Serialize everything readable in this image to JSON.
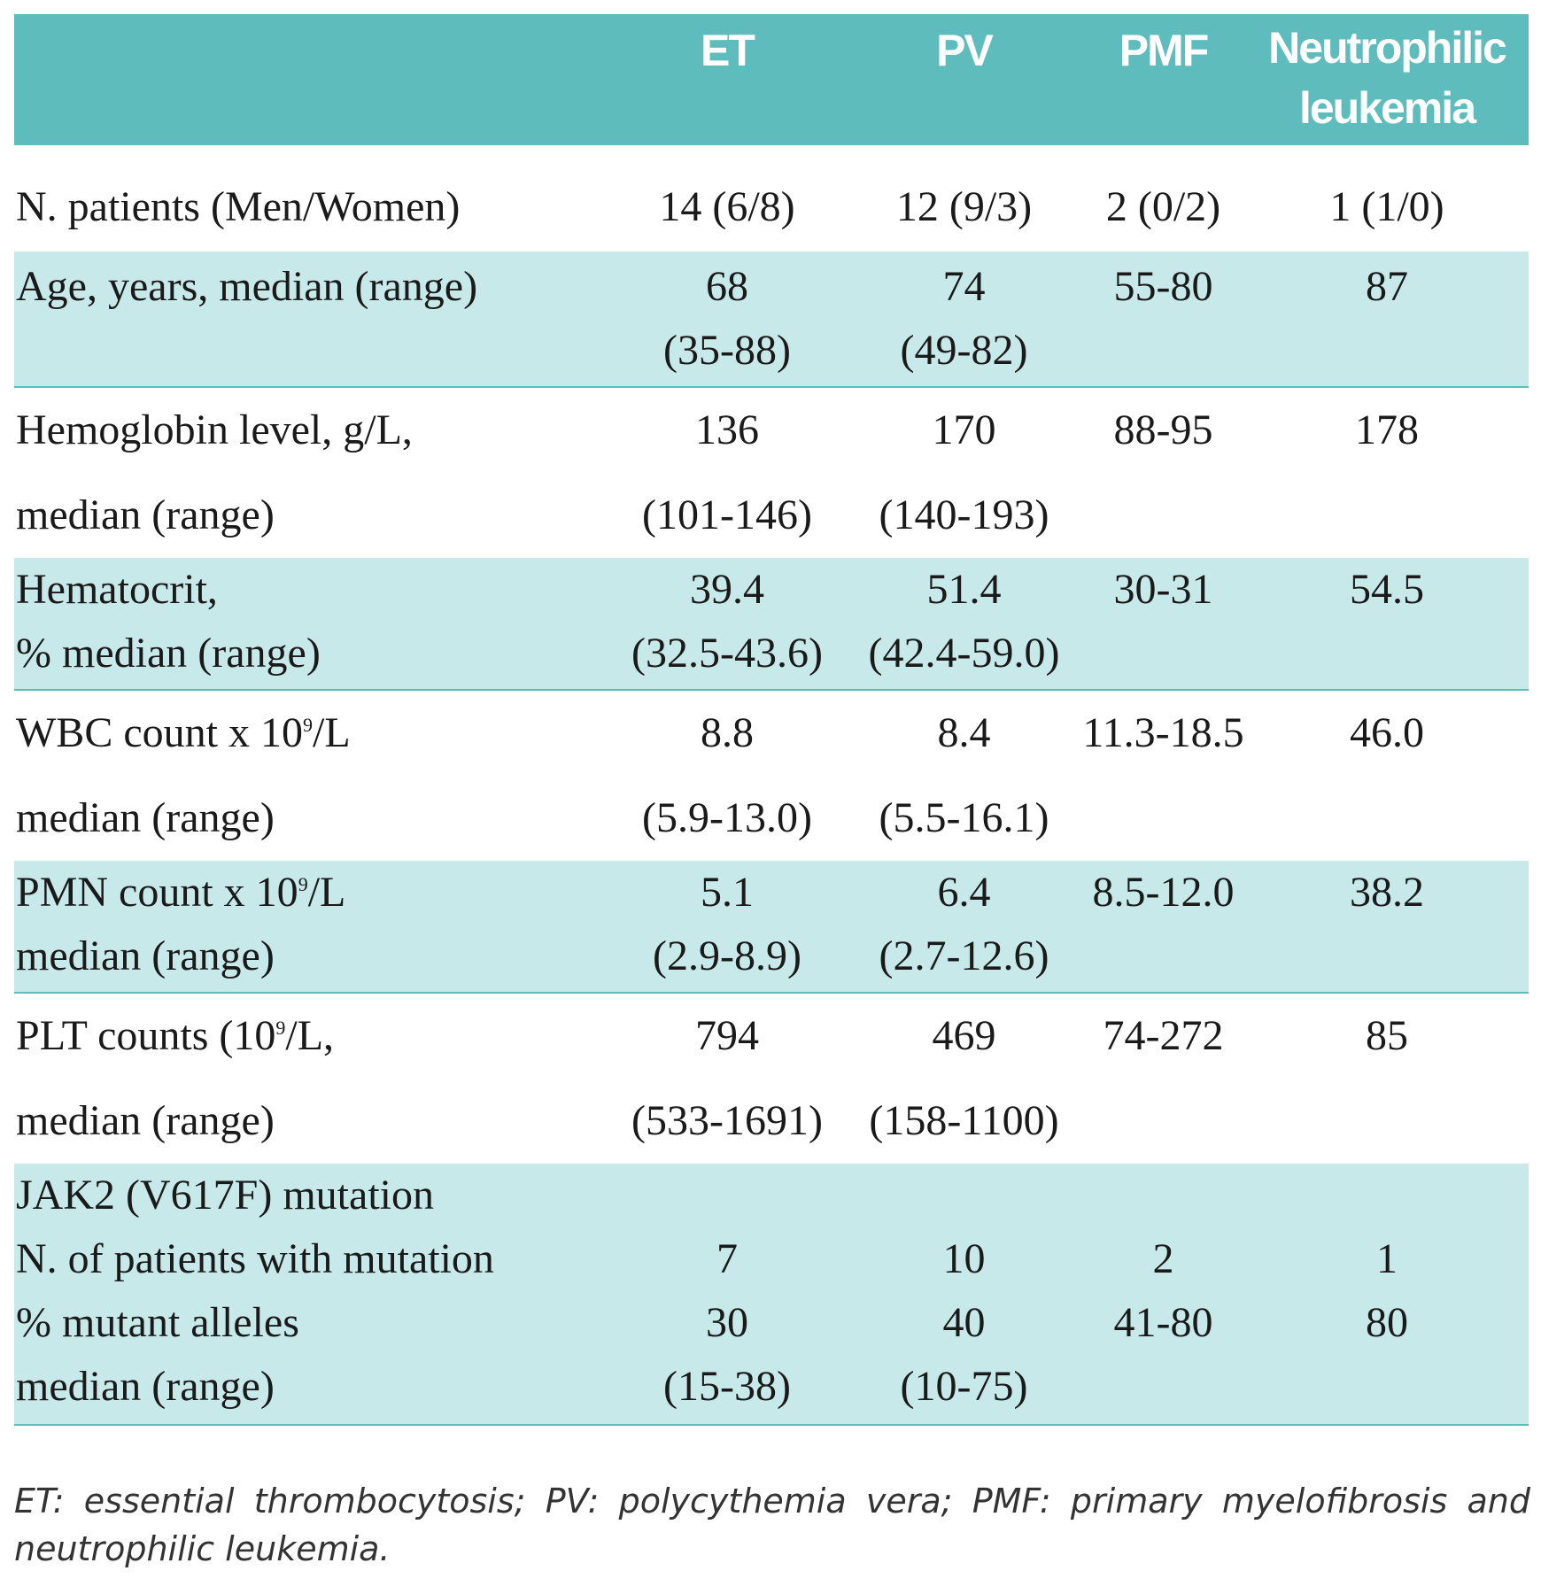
{
  "header": {
    "label": "",
    "columns": [
      "ET",
      "PV",
      "PMF",
      "Neutrophilic leukemia"
    ]
  },
  "rows": [
    {
      "label_lines": [
        "N. patients (Men/Women)"
      ],
      "et": [
        "14 (6/8)"
      ],
      "pv": [
        "12 (9/3)"
      ],
      "pmf": [
        "2 (0/2)"
      ],
      "nl": [
        "1 (1/0)"
      ]
    },
    {
      "label_lines": [
        "Age, years, median (range)"
      ],
      "et": [
        "68",
        "(35-88)"
      ],
      "pv": [
        "74",
        "(49-82)"
      ],
      "pmf": [
        "55-80"
      ],
      "nl": [
        "87"
      ]
    },
    {
      "label_lines": [
        "Hemoglobin level, g/L,",
        "median (range)"
      ],
      "et": [
        "136",
        "(101-146)"
      ],
      "pv": [
        "170",
        "(140-193)"
      ],
      "pmf": [
        "88-95"
      ],
      "nl": [
        "178"
      ]
    },
    {
      "label_lines": [
        "Hematocrit,",
        "% median (range)"
      ],
      "et": [
        "39.4",
        "(32.5-43.6)"
      ],
      "pv": [
        "51.4",
        "(42.4-59.0)"
      ],
      "pmf": [
        "30-31"
      ],
      "nl": [
        "54.5"
      ]
    },
    {
      "label_pre": "WBC count x 10",
      "label_sup": "9",
      "label_post": "/L",
      "label_line2": "median (range)",
      "et": [
        "8.8",
        "(5.9-13.0)"
      ],
      "pv": [
        "8.4",
        "(5.5-16.1)"
      ],
      "pmf": [
        "11.3-18.5"
      ],
      "nl": [
        "46.0"
      ]
    },
    {
      "label_pre": "PMN count x 10",
      "label_sup": "9",
      "label_post": "/L",
      "label_line2": "median (range)",
      "et": [
        "5.1",
        "(2.9-8.9)"
      ],
      "pv": [
        "6.4",
        "(2.7-12.6)"
      ],
      "pmf": [
        "8.5-12.0"
      ],
      "nl": [
        "38.2"
      ]
    },
    {
      "label_pre": "PLT counts (10",
      "label_sup": "9",
      "label_post": "/L,",
      "label_line2": "median (range)",
      "et": [
        "794",
        "(533-1691)"
      ],
      "pv": [
        "469",
        "(158-1100)"
      ],
      "pmf": [
        "74-272"
      ],
      "nl": [
        "85"
      ]
    },
    {
      "label_lines": [
        "JAK2 (V617F) mutation",
        "N. of patients with mutation",
        "% mutant alleles",
        "median (range)"
      ],
      "et": [
        "",
        "7",
        "30",
        "(15-38)"
      ],
      "pv": [
        "",
        "10",
        "40",
        "(10-75)"
      ],
      "pmf": [
        "",
        "2",
        "41-80",
        ""
      ],
      "nl": [
        "",
        "1",
        "80",
        ""
      ]
    }
  ],
  "footnote": "ET: essential thrombocytosis; PV: polycythemia vera; PMF: primary myelofibrosis and neutrophilic leukemia.",
  "colors": {
    "header_bg": "#5fbcbd",
    "shade_bg": "#c8e9ea",
    "rule": "#5fbcbd"
  }
}
